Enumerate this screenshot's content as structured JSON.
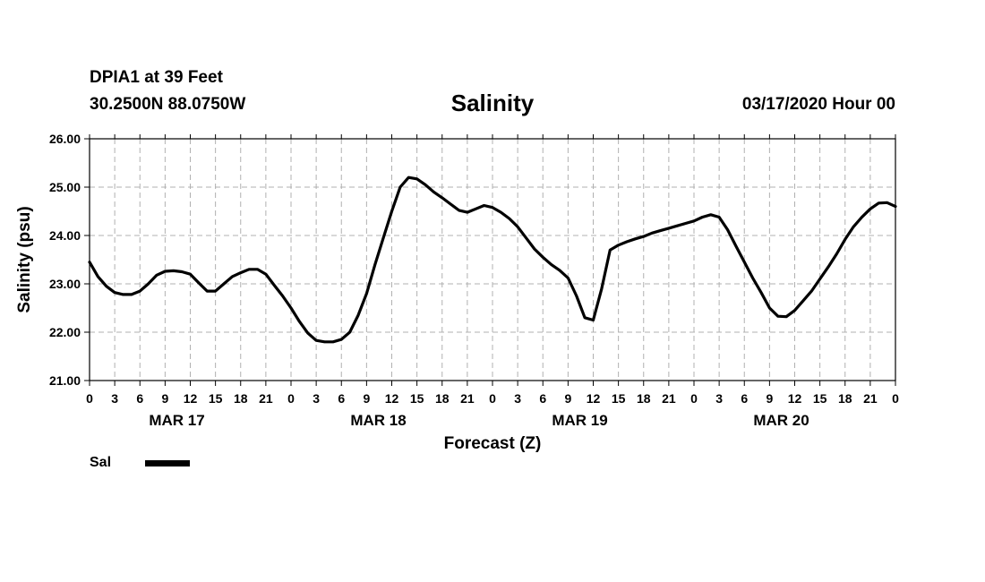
{
  "header": {
    "station": "DPIA1 at 39 Feet",
    "coords": "30.2500N 88.0750W",
    "title": "Salinity",
    "datetime": "03/17/2020 Hour 00"
  },
  "legend": {
    "label": "Sal",
    "color": "#000000"
  },
  "chart_data": {
    "type": "line",
    "title": "Salinity",
    "xlabel": "Forecast (Z)",
    "ylabel": "Salinity (psu)",
    "ylim": [
      21.0,
      26.0
    ],
    "yticks": [
      "21.00",
      "22.00",
      "23.00",
      "24.00",
      "25.00",
      "26.00"
    ],
    "xlim_hours": [
      0,
      96
    ],
    "xticks": [
      "0",
      "3",
      "6",
      "9",
      "12",
      "15",
      "18",
      "21",
      "0",
      "3",
      "6",
      "9",
      "12",
      "15",
      "18",
      "21",
      "0",
      "3",
      "6",
      "9",
      "12",
      "15",
      "18",
      "21",
      "0",
      "3",
      "6",
      "9",
      "12",
      "15",
      "18",
      "21",
      "0"
    ],
    "day_labels": [
      "MAR 17",
      "MAR 18",
      "MAR 19",
      "MAR 20"
    ],
    "grid": true,
    "series": [
      {
        "name": "Sal",
        "x": [
          0,
          1,
          2,
          3,
          4,
          5,
          6,
          7,
          8,
          9,
          10,
          11,
          12,
          13,
          14,
          15,
          16,
          17,
          18,
          19,
          20,
          21,
          22,
          23,
          24,
          25,
          26,
          27,
          28,
          29,
          30,
          31,
          32,
          33,
          34,
          35,
          36,
          37,
          38,
          39,
          40,
          41,
          42,
          43,
          44,
          45,
          46,
          47,
          48,
          49,
          50,
          51,
          52,
          53,
          54,
          55,
          56,
          57,
          58,
          59,
          60,
          61,
          62,
          63,
          64,
          65,
          66,
          67,
          68,
          69,
          70,
          71,
          72,
          73,
          74,
          75,
          76,
          77,
          78,
          79,
          80,
          81,
          82,
          83,
          84,
          85,
          86,
          87,
          88,
          89,
          90,
          91,
          92,
          93,
          94,
          95,
          96
        ],
        "y": [
          23.45,
          23.15,
          22.95,
          22.82,
          22.78,
          22.78,
          22.85,
          23.0,
          23.18,
          23.26,
          23.27,
          23.25,
          23.2,
          23.02,
          22.85,
          22.85,
          23.0,
          23.15,
          23.23,
          23.3,
          23.3,
          23.2,
          22.97,
          22.75,
          22.5,
          22.22,
          21.98,
          21.83,
          21.8,
          21.8,
          21.85,
          22.0,
          22.35,
          22.8,
          23.4,
          23.95,
          24.5,
          25.0,
          25.2,
          25.17,
          25.05,
          24.9,
          24.78,
          24.65,
          24.52,
          24.48,
          24.55,
          24.62,
          24.58,
          24.48,
          24.35,
          24.18,
          23.95,
          23.72,
          23.55,
          23.4,
          23.28,
          23.12,
          22.75,
          22.3,
          22.25,
          22.9,
          23.7,
          23.8,
          23.87,
          23.93,
          23.98,
          24.05,
          24.1,
          24.15,
          24.2,
          24.25,
          24.3,
          24.38,
          24.43,
          24.38,
          24.12,
          23.78,
          23.45,
          23.12,
          22.82,
          22.5,
          22.33,
          22.32,
          22.45,
          22.65,
          22.85,
          23.1,
          23.35,
          23.62,
          23.92,
          24.18,
          24.38,
          24.55,
          24.67,
          24.68,
          24.6
        ]
      }
    ]
  }
}
